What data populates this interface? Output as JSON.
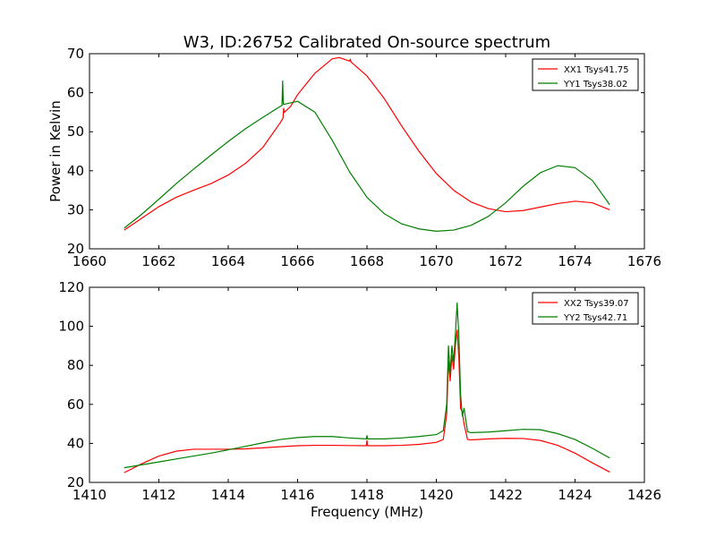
{
  "title": "W3, ID:26752 Calibrated On-source spectrum",
  "colors": {
    "XX": "#ff0000",
    "YY": "#007f00",
    "frame": "#000000",
    "background": "#ffffff"
  },
  "chart_data": [
    {
      "type": "line",
      "title": "W3, ID:26752 Calibrated On-source spectrum",
      "xlabel": "",
      "ylabel": "Power in Kelvin",
      "xlim": [
        1660,
        1676
      ],
      "ylim": [
        20,
        70
      ],
      "xticks": [
        1660,
        1662,
        1664,
        1666,
        1668,
        1670,
        1672,
        1674,
        1676
      ],
      "yticks": [
        20,
        30,
        40,
        50,
        60,
        70
      ],
      "grid": false,
      "legend_position": "top-right",
      "series": [
        {
          "name": "XX1 Tsys41.75",
          "color": "#ff0000",
          "points": [
            [
              1661.0,
              24.8
            ],
            [
              1661.5,
              27.8
            ],
            [
              1662.0,
              30.8
            ],
            [
              1662.5,
              33.2
            ],
            [
              1663.0,
              35.0
            ],
            [
              1663.5,
              36.7
            ],
            [
              1664.0,
              38.9
            ],
            [
              1664.5,
              41.9
            ],
            [
              1665.0,
              46.0
            ],
            [
              1665.5,
              52.3
            ],
            [
              1665.58,
              53.5
            ],
            [
              1665.6,
              56.0
            ],
            [
              1665.62,
              55.0
            ],
            [
              1665.8,
              56.5
            ],
            [
              1666.0,
              59.5
            ],
            [
              1666.5,
              65.0
            ],
            [
              1667.0,
              68.7
            ],
            [
              1667.2,
              69.0
            ],
            [
              1667.5,
              68.1
            ],
            [
              1667.52,
              68.6
            ],
            [
              1667.54,
              67.9
            ],
            [
              1668.0,
              64.3
            ],
            [
              1668.5,
              58.5
            ],
            [
              1669.0,
              51.5
            ],
            [
              1669.5,
              45.0
            ],
            [
              1670.0,
              39.3
            ],
            [
              1670.5,
              35.0
            ],
            [
              1671.0,
              32.0
            ],
            [
              1671.5,
              30.3
            ],
            [
              1672.0,
              29.5
            ],
            [
              1672.5,
              29.8
            ],
            [
              1673.0,
              30.7
            ],
            [
              1673.5,
              31.6
            ],
            [
              1674.0,
              32.2
            ],
            [
              1674.5,
              31.8
            ],
            [
              1675.0,
              30.0
            ]
          ]
        },
        {
          "name": "YY1 Tsys38.02",
          "color": "#007f00",
          "points": [
            [
              1661.0,
              25.3
            ],
            [
              1661.5,
              28.8
            ],
            [
              1662.0,
              32.7
            ],
            [
              1662.5,
              36.7
            ],
            [
              1663.0,
              40.4
            ],
            [
              1663.5,
              44.0
            ],
            [
              1664.0,
              47.5
            ],
            [
              1664.5,
              50.8
            ],
            [
              1665.0,
              53.7
            ],
            [
              1665.5,
              56.5
            ],
            [
              1665.55,
              56.7
            ],
            [
              1665.57,
              63.0
            ],
            [
              1665.59,
              57.0
            ],
            [
              1666.0,
              57.8
            ],
            [
              1666.5,
              55.0
            ],
            [
              1667.0,
              47.8
            ],
            [
              1667.5,
              39.7
            ],
            [
              1668.0,
              33.2
            ],
            [
              1668.5,
              29.0
            ],
            [
              1669.0,
              26.4
            ],
            [
              1669.5,
              25.1
            ],
            [
              1670.0,
              24.5
            ],
            [
              1670.5,
              24.8
            ],
            [
              1671.0,
              26.0
            ],
            [
              1671.5,
              28.3
            ],
            [
              1672.0,
              31.8
            ],
            [
              1672.5,
              36.0
            ],
            [
              1673.0,
              39.5
            ],
            [
              1673.5,
              41.3
            ],
            [
              1674.0,
              40.8
            ],
            [
              1674.5,
              37.5
            ],
            [
              1675.0,
              31.3
            ]
          ]
        }
      ]
    },
    {
      "type": "line",
      "title": "",
      "xlabel": "Frequency (MHz)",
      "ylabel": "",
      "xlim": [
        1410,
        1426
      ],
      "ylim": [
        20,
        120
      ],
      "xticks": [
        1410,
        1412,
        1414,
        1416,
        1418,
        1420,
        1422,
        1424,
        1426
      ],
      "yticks": [
        20,
        40,
        60,
        80,
        100,
        120
      ],
      "grid": false,
      "legend_position": "top-right",
      "series": [
        {
          "name": "XX2 Tsys39.07",
          "color": "#ff0000",
          "points": [
            [
              1411.0,
              25.0
            ],
            [
              1411.5,
              29.5
            ],
            [
              1412.0,
              33.5
            ],
            [
              1412.5,
              36.0
            ],
            [
              1413.0,
              37.0
            ],
            [
              1413.5,
              37.0
            ],
            [
              1414.0,
              37.0
            ],
            [
              1414.5,
              37.2
            ],
            [
              1415.0,
              37.7
            ],
            [
              1415.5,
              38.3
            ],
            [
              1416.0,
              38.8
            ],
            [
              1416.5,
              39.0
            ],
            [
              1417.0,
              39.0
            ],
            [
              1417.5,
              38.9
            ],
            [
              1417.98,
              38.8
            ],
            [
              1418.0,
              41.5
            ],
            [
              1418.02,
              38.8
            ],
            [
              1418.5,
              38.8
            ],
            [
              1419.0,
              39.0
            ],
            [
              1419.5,
              39.5
            ],
            [
              1420.0,
              40.5
            ],
            [
              1420.2,
              42.0
            ],
            [
              1420.3,
              55.0
            ],
            [
              1420.35,
              82.0
            ],
            [
              1420.4,
              72.0
            ],
            [
              1420.45,
              85.0
            ],
            [
              1420.5,
              78.0
            ],
            [
              1420.55,
              90.0
            ],
            [
              1420.6,
              98.0
            ],
            [
              1420.65,
              84.0
            ],
            [
              1420.7,
              58.0
            ],
            [
              1420.75,
              56.0
            ],
            [
              1420.8,
              50.0
            ],
            [
              1420.9,
              42.0
            ],
            [
              1421.0,
              41.8
            ],
            [
              1421.5,
              42.3
            ],
            [
              1422.0,
              42.6
            ],
            [
              1422.5,
              42.5
            ],
            [
              1423.0,
              41.5
            ],
            [
              1423.5,
              39.0
            ],
            [
              1424.0,
              35.0
            ],
            [
              1424.5,
              30.0
            ],
            [
              1425.0,
              25.3
            ]
          ]
        },
        {
          "name": "YY2 Tsys42.71",
          "color": "#007f00",
          "points": [
            [
              1411.0,
              27.5
            ],
            [
              1411.5,
              29.0
            ],
            [
              1412.0,
              30.5
            ],
            [
              1412.5,
              32.0
            ],
            [
              1413.0,
              33.5
            ],
            [
              1413.5,
              35.0
            ],
            [
              1414.0,
              36.7
            ],
            [
              1414.5,
              38.5
            ],
            [
              1415.0,
              40.3
            ],
            [
              1415.5,
              42.0
            ],
            [
              1416.0,
              43.0
            ],
            [
              1416.5,
              43.5
            ],
            [
              1417.0,
              43.5
            ],
            [
              1417.5,
              42.8
            ],
            [
              1417.98,
              42.3
            ],
            [
              1418.0,
              44.0
            ],
            [
              1418.02,
              42.3
            ],
            [
              1418.5,
              42.3
            ],
            [
              1419.0,
              42.8
            ],
            [
              1419.5,
              43.5
            ],
            [
              1420.0,
              44.5
            ],
            [
              1420.2,
              46.5
            ],
            [
              1420.3,
              60.0
            ],
            [
              1420.35,
              90.0
            ],
            [
              1420.4,
              76.0
            ],
            [
              1420.45,
              90.0
            ],
            [
              1420.5,
              82.0
            ],
            [
              1420.55,
              96.0
            ],
            [
              1420.6,
              112.0
            ],
            [
              1420.65,
              95.0
            ],
            [
              1420.7,
              65.0
            ],
            [
              1420.75,
              54.0
            ],
            [
              1420.8,
              58.0
            ],
            [
              1420.9,
              46.0
            ],
            [
              1421.0,
              45.5
            ],
            [
              1421.5,
              45.8
            ],
            [
              1422.0,
              46.5
            ],
            [
              1422.5,
              47.2
            ],
            [
              1423.0,
              47.0
            ],
            [
              1423.5,
              45.0
            ],
            [
              1424.0,
              42.0
            ],
            [
              1424.5,
              37.5
            ],
            [
              1425.0,
              32.5
            ]
          ]
        }
      ]
    }
  ]
}
